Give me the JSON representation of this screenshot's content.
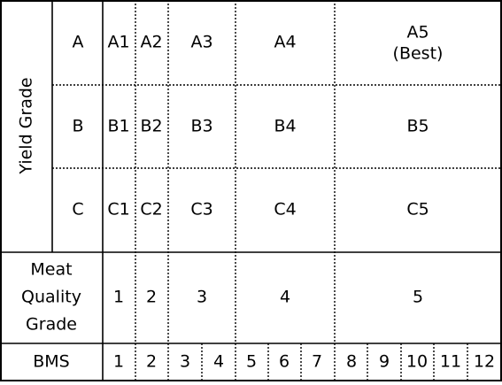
{
  "yield_grade": {
    "label": "Yield Grade",
    "rows": [
      {
        "grade": "A",
        "cells": [
          "A1",
          "A2",
          "A3",
          "A4",
          "A5"
        ],
        "note": "(Best)"
      },
      {
        "grade": "B",
        "cells": [
          "B1",
          "B2",
          "B3",
          "B4",
          "B5"
        ]
      },
      {
        "grade": "C",
        "cells": [
          "C1",
          "C2",
          "C3",
          "C4",
          "C5"
        ]
      }
    ]
  },
  "meat_quality_grade": {
    "label_lines": [
      "Meat",
      "Quality",
      "Grade"
    ],
    "values": [
      1,
      2,
      3,
      4,
      5
    ]
  },
  "bms": {
    "label": "BMS",
    "values": [
      1,
      2,
      3,
      4,
      5,
      6,
      7,
      8,
      9,
      10,
      11,
      12
    ]
  }
}
